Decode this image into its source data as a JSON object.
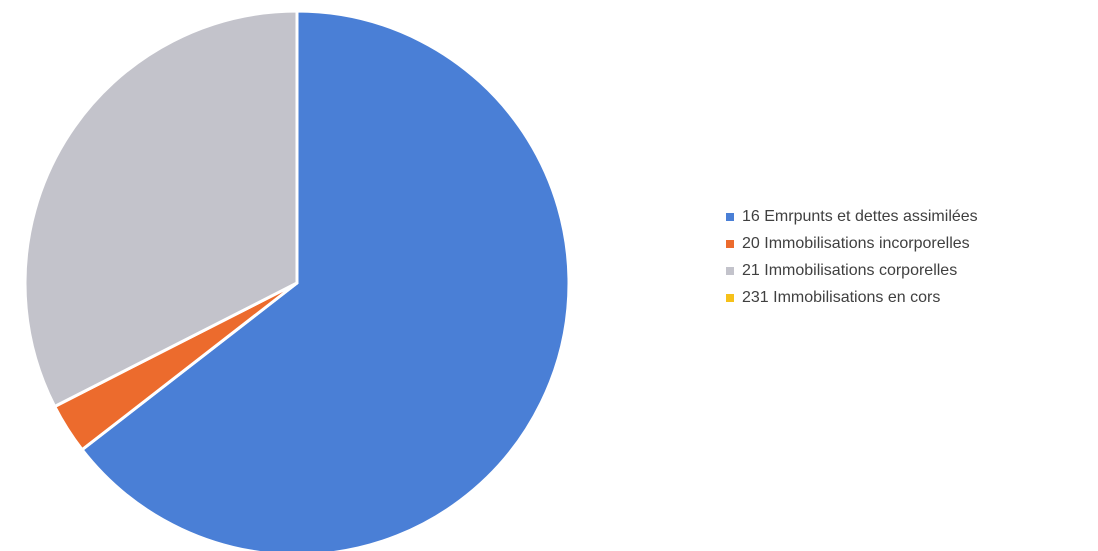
{
  "chart_data": {
    "type": "pie",
    "title": "",
    "categories": [
      "16 Emrpunts et dettes assimilées",
      "20 Immobilisations incorporelles",
      "21 Immobilisations corporelles",
      "231 Immobilisations en cors"
    ],
    "values": [
      64.5,
      3.0,
      32.5,
      0
    ],
    "colors": [
      "#4a7fd6",
      "#ec6b2d",
      "#c3c3cb",
      "#f6c11a"
    ],
    "legend": "right"
  }
}
